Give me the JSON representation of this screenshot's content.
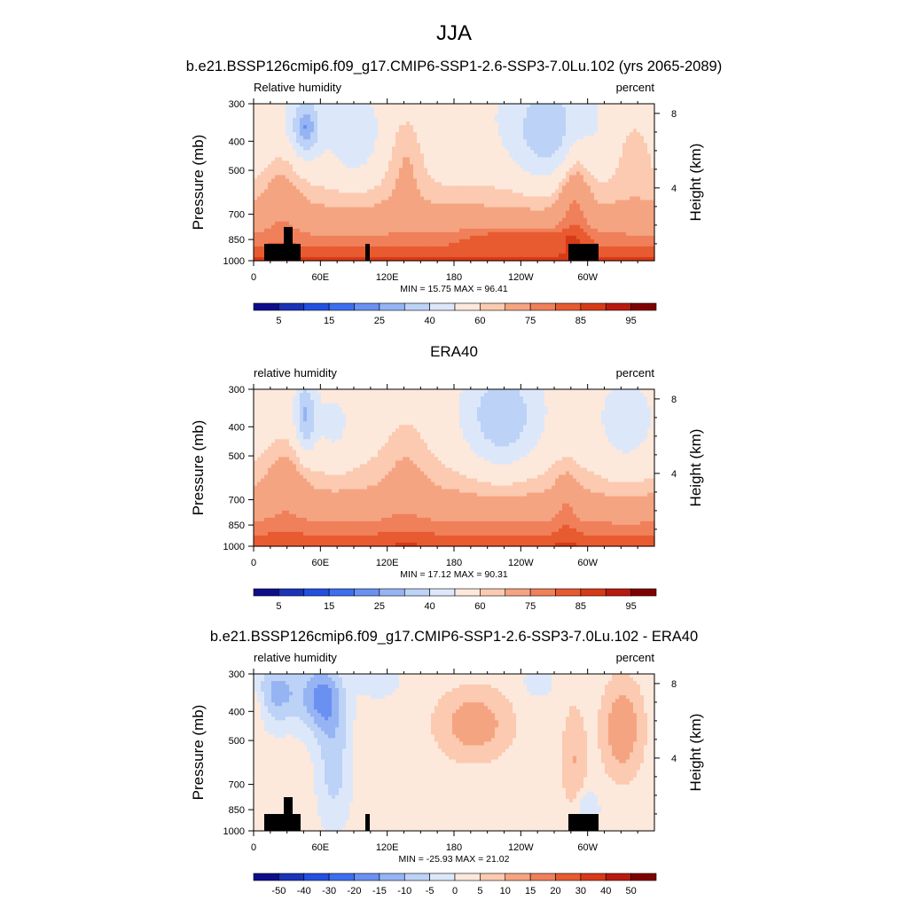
{
  "figure": {
    "title": "JJA"
  },
  "chart_data": [
    {
      "type": "heatmap",
      "title": "b.e21.BSSP126cmip6.f09_g17.CMIP6-SSP1-2.6-SSP3-7.0Lu.102 (yrs 2065-2089)",
      "left_label": "Relative humidity",
      "right_label": "percent",
      "ylabel": "Pressure (mb)",
      "ylabel_right": "Height (km)",
      "x_ticks": [
        "0",
        "60E",
        "120E",
        "180",
        "120W",
        "60W"
      ],
      "y_ticks": [
        "300",
        "400",
        "500",
        "700",
        "850",
        "1000"
      ],
      "y_ticks_right": [
        "8",
        "4"
      ],
      "stats": "MIN =  15.75  MAX =  96.41",
      "colorbar_labels": [
        "5",
        "15",
        "25",
        "40",
        "60",
        "75",
        "85",
        "95"
      ],
      "colorbar_colors": [
        "#0d0d8c",
        "#1a33b8",
        "#2250e0",
        "#3d6ef0",
        "#6a90f2",
        "#96b4f4",
        "#bcd2f7",
        "#dce8fa",
        "#fde8dc",
        "#fbcab0",
        "#f5a482",
        "#f0805a",
        "#e85a30",
        "#d83a18",
        "#b81a10",
        "#800000"
      ],
      "has_terrain": true
    },
    {
      "type": "heatmap",
      "title": "ERA40",
      "left_label": "relative humidity",
      "right_label": "percent",
      "ylabel": "Pressure (mb)",
      "ylabel_right": "Height (km)",
      "x_ticks": [
        "0",
        "60E",
        "120E",
        "180",
        "120W",
        "60W"
      ],
      "y_ticks": [
        "300",
        "400",
        "500",
        "700",
        "850",
        "1000"
      ],
      "y_ticks_right": [
        "8",
        "4"
      ],
      "stats": "MIN =  17.12  MAX =  90.31",
      "colorbar_labels": [
        "5",
        "15",
        "25",
        "40",
        "60",
        "75",
        "85",
        "95"
      ],
      "colorbar_colors": [
        "#0d0d8c",
        "#1a33b8",
        "#2250e0",
        "#3d6ef0",
        "#6a90f2",
        "#96b4f4",
        "#bcd2f7",
        "#dce8fa",
        "#fde8dc",
        "#fbcab0",
        "#f5a482",
        "#f0805a",
        "#e85a30",
        "#d83a18",
        "#b81a10",
        "#800000"
      ],
      "has_terrain": false
    },
    {
      "type": "heatmap",
      "title": "b.e21.BSSP126cmip6.f09_g17.CMIP6-SSP1-2.6-SSP3-7.0Lu.102 - ERA40",
      "left_label": "relative humidity",
      "right_label": "percent",
      "ylabel": "Pressure (mb)",
      "ylabel_right": "Height (km)",
      "x_ticks": [
        "0",
        "60E",
        "120E",
        "180",
        "120W",
        "60W"
      ],
      "y_ticks": [
        "300",
        "400",
        "500",
        "700",
        "850",
        "1000"
      ],
      "y_ticks_right": [
        "8",
        "4"
      ],
      "stats": "MIN = -25.93  MAX =  21.02",
      "colorbar_labels": [
        "-50",
        "-40",
        "-30",
        "-20",
        "-15",
        "-10",
        "-5",
        "0",
        "5",
        "10",
        "15",
        "20",
        "30",
        "40",
        "50"
      ],
      "colorbar_colors": [
        "#0d0d8c",
        "#1a33b8",
        "#2250e0",
        "#3d6ef0",
        "#6a90f2",
        "#96b4f4",
        "#bcd2f7",
        "#dce8fa",
        "#fde8dc",
        "#fbcab0",
        "#f5a482",
        "#f0805a",
        "#e85a30",
        "#d83a18",
        "#b81a10",
        "#800000"
      ],
      "has_terrain": true
    }
  ]
}
